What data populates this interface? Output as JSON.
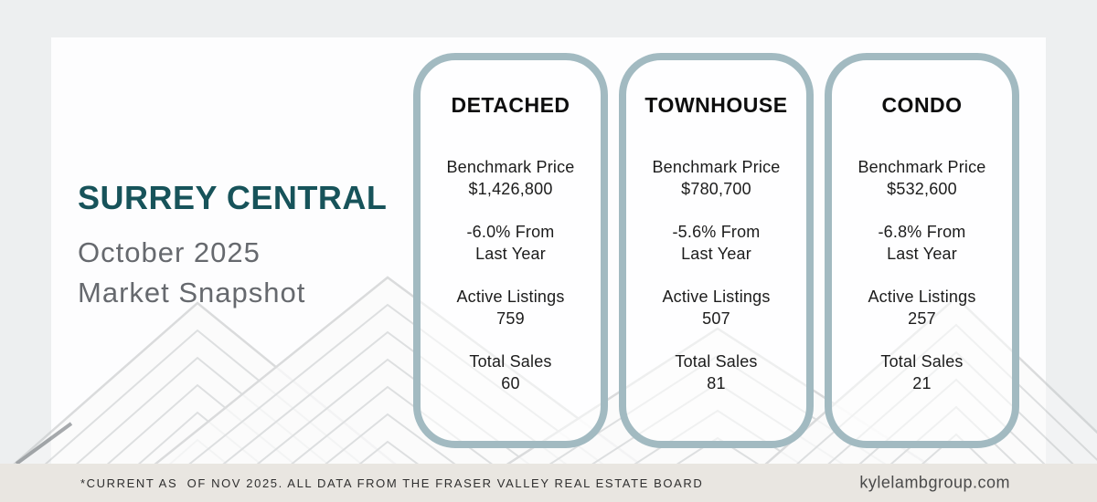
{
  "colors": {
    "accent_teal": "#17535a",
    "card_border": "#a2bac1",
    "subtitle_gray": "#66696e",
    "footer_bg": "#e9e6e1",
    "text_dark": "#1c1c1c"
  },
  "header": {
    "region_title": "SURREY CENTRAL",
    "subtitle_line1": "October 2025",
    "subtitle_line2": "Market Snapshot"
  },
  "cards": [
    {
      "title": "DETACHED",
      "benchmark_label": "Benchmark Price",
      "benchmark_value": "$1,426,800",
      "change_line1": "-6.0% From",
      "change_line2": "Last Year",
      "listings_label": "Active Listings",
      "listings_value": "759",
      "sales_label": "Total Sales",
      "sales_value": "60"
    },
    {
      "title": "TOWNHOUSE",
      "benchmark_label": "Benchmark Price",
      "benchmark_value": "$780,700",
      "change_line1": "-5.6% From",
      "change_line2": "Last Year",
      "listings_label": "Active Listings",
      "listings_value": "507",
      "sales_label": "Total Sales",
      "sales_value": "81"
    },
    {
      "title": "CONDO",
      "benchmark_label": "Benchmark Price",
      "benchmark_value": "$532,600",
      "change_line1": "-6.8% From",
      "change_line2": "Last Year",
      "listings_label": "Active Listings",
      "listings_value": "257",
      "sales_label": "Total Sales",
      "sales_value": "21"
    }
  ],
  "footer": {
    "disclaimer": "*CURRENT AS  OF NOV 2025. ALL DATA FROM THE FRASER VALLEY REAL ESTATE BOARD",
    "website": "kylelambgroup.com"
  }
}
